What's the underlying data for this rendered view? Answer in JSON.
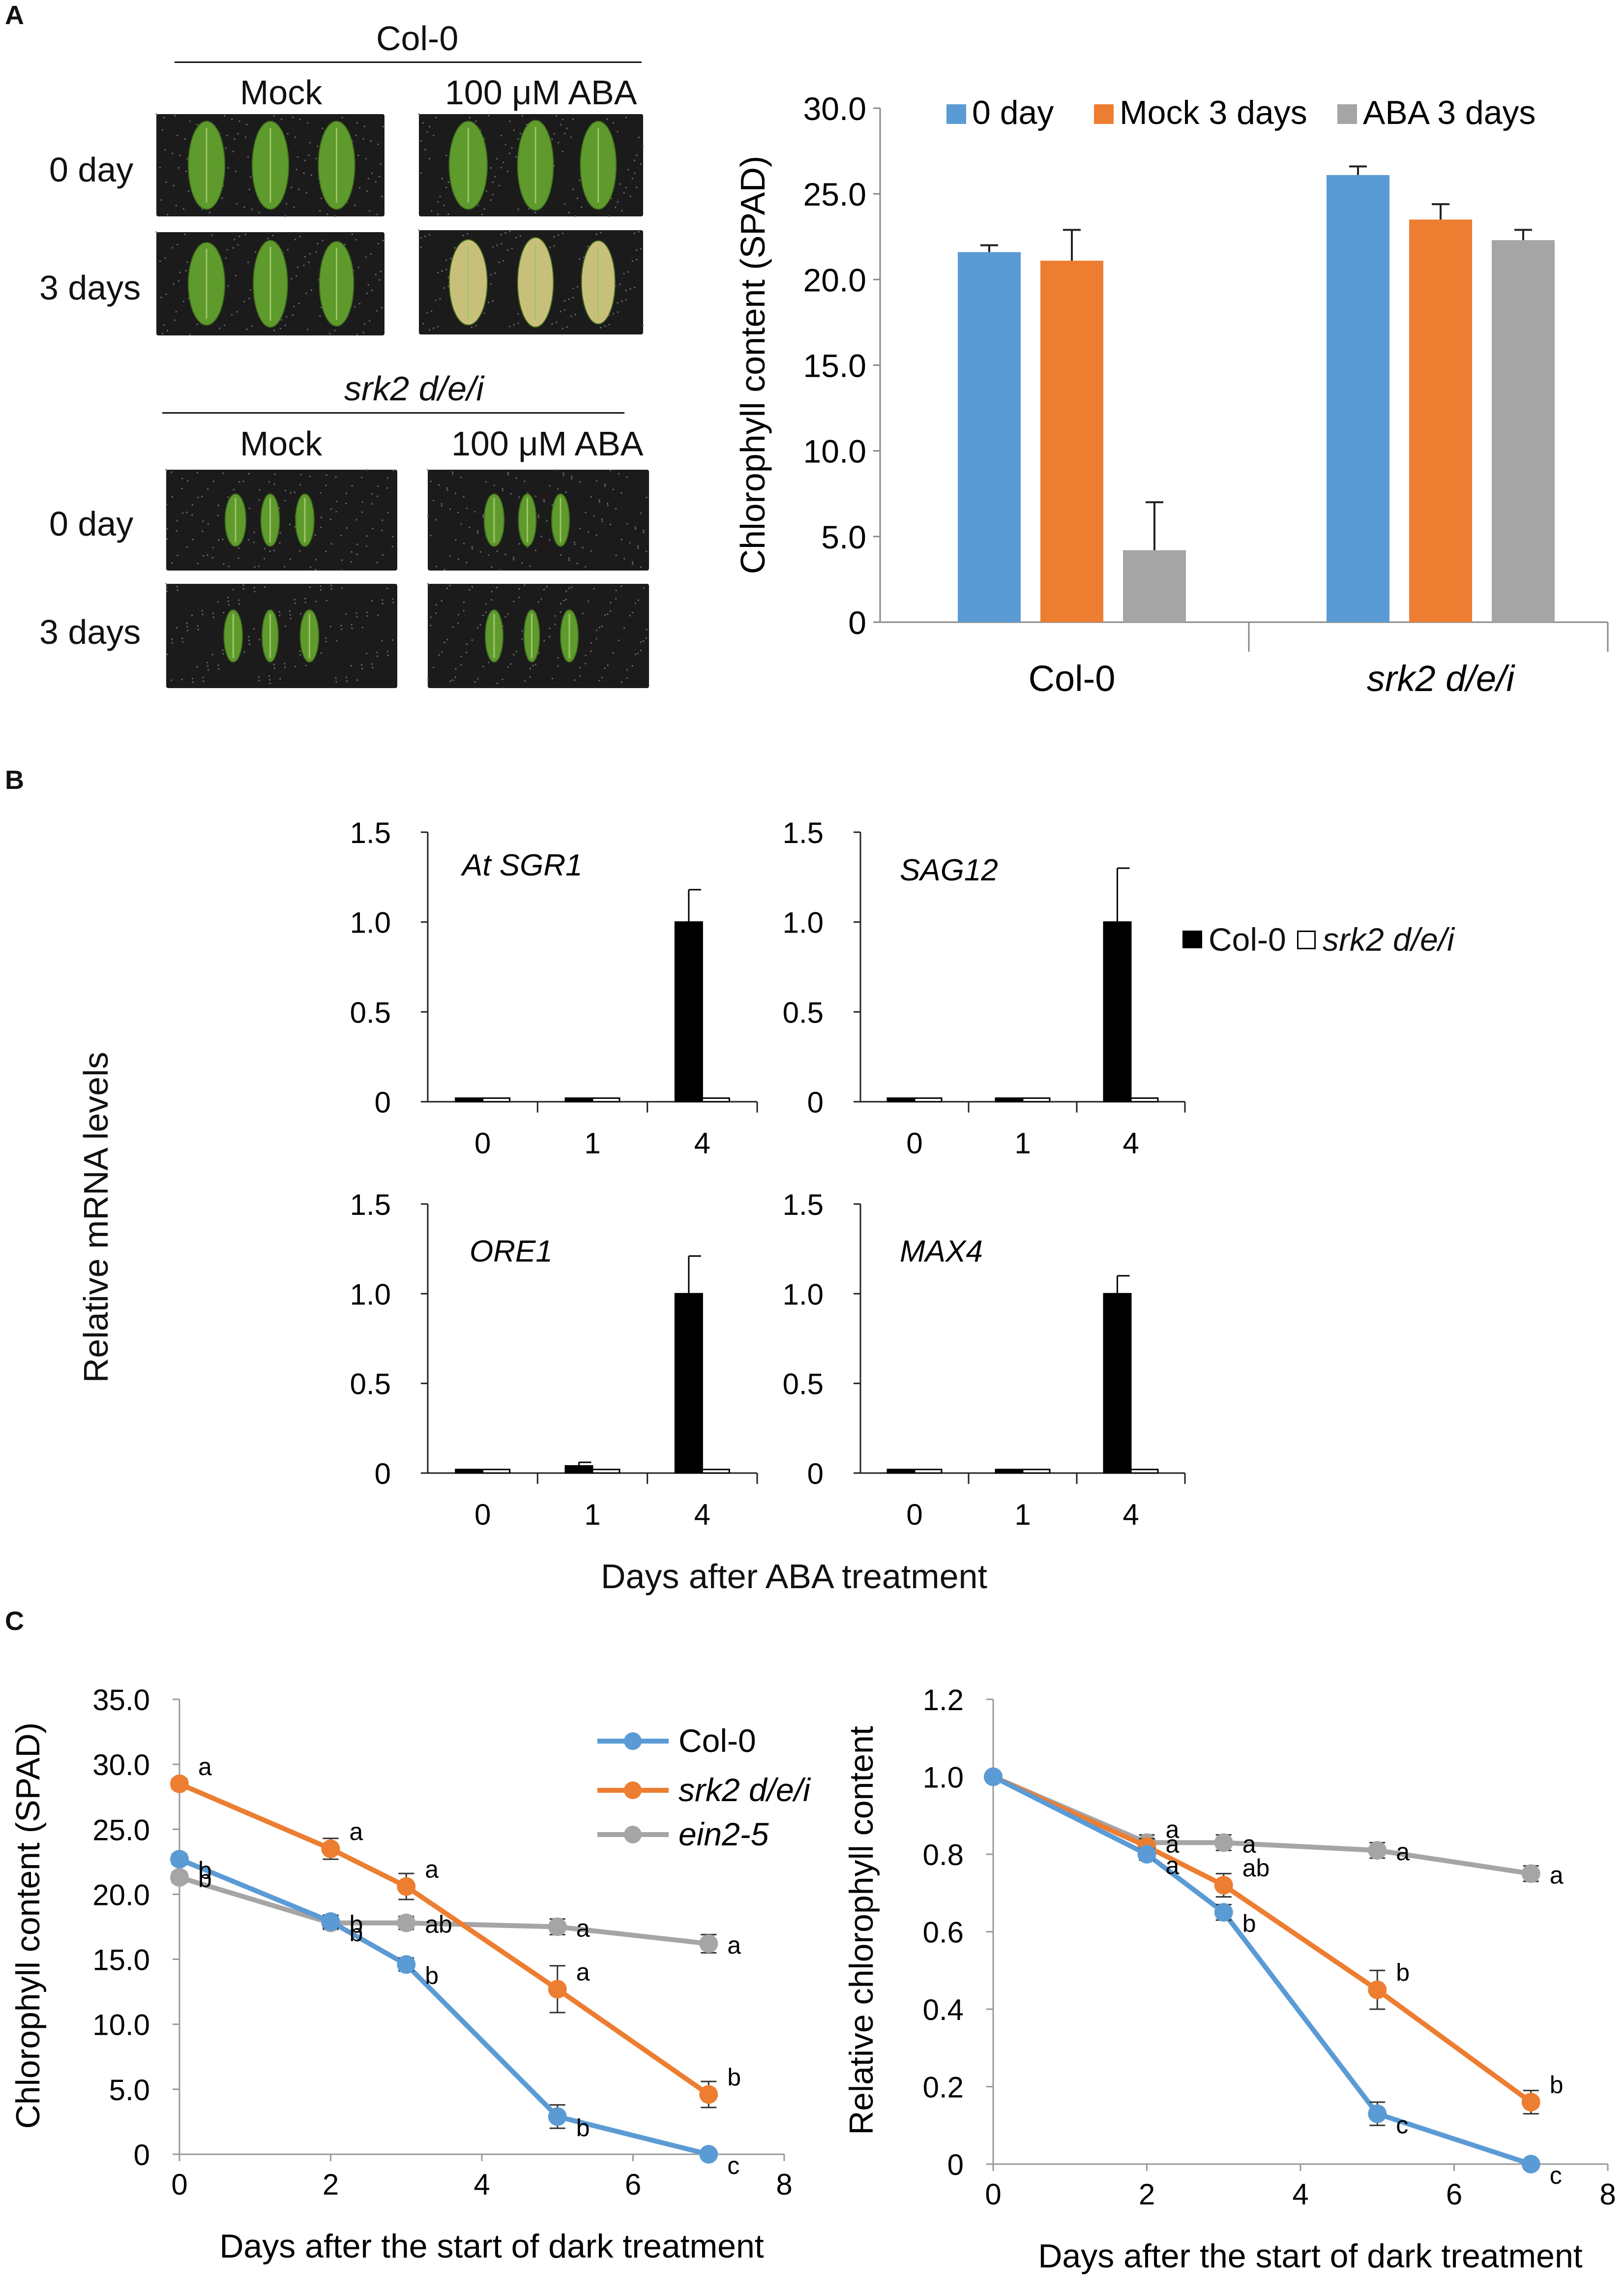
{
  "panels": {
    "a": "A",
    "b": "B",
    "c": "C"
  },
  "photos": {
    "col0_header": "Col-0",
    "srk2_header": "srk2 d/e/i",
    "mock_label": "Mock",
    "aba_label": "100 μM ABA",
    "day0_label": "0 day",
    "day3_label": "3 days",
    "leaf_colors": {
      "green": "#5e9a2c",
      "yellow": "#c8c07a",
      "background": "#1b1b1b"
    }
  },
  "chart_data": [
    {
      "id": "A-bar",
      "type": "bar",
      "ylabel": "Chlorophyll content  (SPAD)",
      "ylim": [
        0,
        30
      ],
      "yticks": [
        "0",
        "5.0",
        "10.0",
        "15.0",
        "20.0",
        "25.0",
        "30.0"
      ],
      "categories": [
        "Col-0",
        "srk2 d/e/i"
      ],
      "legend": "top",
      "series": [
        {
          "name": "0 day",
          "color": "#5b9bd5",
          "values": [
            21.6,
            26.1
          ],
          "errors": [
            0.4,
            0.5
          ]
        },
        {
          "name": "Mock 3 days",
          "color": "#ed7d31",
          "values": [
            21.1,
            23.5
          ],
          "errors": [
            1.8,
            0.9
          ]
        },
        {
          "name": "ABA 3 days",
          "color": "#a5a5a5",
          "values": [
            4.2,
            22.3
          ],
          "errors": [
            2.8,
            0.6
          ]
        }
      ]
    },
    {
      "id": "B-SGR1",
      "type": "bar",
      "gene": "At SGR1",
      "ylim": [
        0,
        1.5
      ],
      "yticks": [
        "0",
        "0.5",
        "1.0",
        "1.5"
      ],
      "categories": [
        "0",
        "1",
        "4"
      ],
      "series": [
        {
          "name": "Col-0",
          "values": [
            0.02,
            0.02,
            1.0
          ],
          "errors": [
            0,
            0,
            0.18
          ]
        },
        {
          "name": "srk2 d/e/i",
          "values": [
            0.02,
            0.02,
            0.02
          ],
          "errors": [
            0,
            0,
            0
          ]
        }
      ]
    },
    {
      "id": "B-SAG12",
      "type": "bar",
      "gene": "SAG12",
      "ylim": [
        0,
        1.5
      ],
      "yticks": [
        "0",
        "0.5",
        "1.0",
        "1.5"
      ],
      "categories": [
        "0",
        "1",
        "4"
      ],
      "series": [
        {
          "name": "Col-0",
          "values": [
            0.02,
            0.02,
            1.0
          ],
          "errors": [
            0,
            0,
            0.3
          ]
        },
        {
          "name": "srk2 d/e/i",
          "values": [
            0.02,
            0.02,
            0.02
          ],
          "errors": [
            0,
            0,
            0
          ]
        }
      ]
    },
    {
      "id": "B-ORE1",
      "type": "bar",
      "gene": "ORE1",
      "ylim": [
        0,
        1.5
      ],
      "yticks": [
        "0",
        "0.5",
        "1.0",
        "1.5"
      ],
      "categories": [
        "0",
        "1",
        "4"
      ],
      "series": [
        {
          "name": "Col-0",
          "values": [
            0.02,
            0.04,
            1.0
          ],
          "errors": [
            0,
            0.02,
            0.21
          ]
        },
        {
          "name": "srk2 d/e/i",
          "values": [
            0.02,
            0.02,
            0.02
          ],
          "errors": [
            0,
            0,
            0
          ]
        }
      ]
    },
    {
      "id": "B-MAX4",
      "type": "bar",
      "gene": "MAX4",
      "ylim": [
        0,
        1.5
      ],
      "yticks": [
        "0",
        "0.5",
        "1.0",
        "1.5"
      ],
      "categories": [
        "0",
        "1",
        "4"
      ],
      "series": [
        {
          "name": "Col-0",
          "values": [
            0.02,
            0.02,
            1.0
          ],
          "errors": [
            0,
            0,
            0.1
          ]
        },
        {
          "name": "srk2 d/e/i",
          "values": [
            0.02,
            0.02,
            0.02
          ],
          "errors": [
            0,
            0,
            0
          ]
        }
      ]
    },
    {
      "id": "C-left",
      "type": "line",
      "ylabel": "Chlorophyll content  (SPAD)",
      "xlabel": "Days after the start of dark treatment",
      "xlim": [
        0,
        8
      ],
      "ylim": [
        0,
        35
      ],
      "xticks": [
        "0",
        "2",
        "4",
        "6",
        "8"
      ],
      "yticks": [
        "0",
        "5.0",
        "10.0",
        "15.0",
        "20.0",
        "25.0",
        "30.0",
        "35.0"
      ],
      "legend": "top-right",
      "series": [
        {
          "name": "Col-0",
          "color": "#5b9bd5",
          "x": [
            0,
            2,
            3,
            5,
            7
          ],
          "y": [
            22.7,
            17.9,
            14.6,
            2.9,
            0
          ],
          "errors": [
            0.4,
            0.5,
            0.5,
            0.9,
            0.3
          ],
          "letters": [
            "b",
            "b",
            "b",
            "b",
            "c"
          ]
        },
        {
          "name": "srk2 d/e/i",
          "color": "#ed7d31",
          "x": [
            0,
            2,
            3,
            5,
            7
          ],
          "y": [
            28.5,
            23.5,
            20.6,
            12.7,
            4.6
          ],
          "errors": [
            0.4,
            0.8,
            1.0,
            1.8,
            1.0
          ],
          "letters": [
            "a",
            "a",
            "a",
            "a",
            "b"
          ]
        },
        {
          "name": "ein2-5",
          "color": "#a5a5a5",
          "x": [
            0,
            2,
            3,
            5,
            7
          ],
          "y": [
            21.3,
            17.8,
            17.8,
            17.5,
            16.2
          ],
          "errors": [
            0.4,
            0.5,
            0.5,
            0.6,
            0.7
          ],
          "letters": [
            "b",
            "b",
            "ab",
            "a",
            "a"
          ]
        }
      ]
    },
    {
      "id": "C-right",
      "type": "line",
      "ylabel": "Relative chlorophyll content",
      "xlabel": "Days after the start of dark treatment",
      "xlim": [
        0,
        8
      ],
      "ylim": [
        0,
        1.2
      ],
      "xticks": [
        "0",
        "2",
        "4",
        "6",
        "8"
      ],
      "yticks": [
        "0",
        "0.2",
        "0.4",
        "0.6",
        "0.8",
        "1.0",
        "1.2"
      ],
      "series": [
        {
          "name": "Col-0",
          "color": "#5b9bd5",
          "x": [
            0,
            2,
            3,
            5,
            7
          ],
          "y": [
            1.0,
            0.8,
            0.65,
            0.13,
            0.0
          ],
          "errors": [
            0,
            0.015,
            0.02,
            0.03,
            0.01
          ],
          "letters": [
            "",
            "a",
            "b",
            "c",
            "c"
          ]
        },
        {
          "name": "srk2 d/e/i",
          "color": "#ed7d31",
          "x": [
            0,
            2,
            3,
            5,
            7
          ],
          "y": [
            1.0,
            0.82,
            0.72,
            0.45,
            0.16
          ],
          "errors": [
            0,
            0.02,
            0.03,
            0.05,
            0.03
          ],
          "letters": [
            "",
            "a",
            "ab",
            "b",
            "b"
          ]
        },
        {
          "name": "ein2-5",
          "color": "#a5a5a5",
          "x": [
            0,
            2,
            3,
            5,
            7
          ],
          "y": [
            1.0,
            0.83,
            0.83,
            0.81,
            0.75
          ],
          "errors": [
            0,
            0.02,
            0.02,
            0.02,
            0.02
          ],
          "letters": [
            "",
            "a",
            "a",
            "a",
            "a"
          ]
        }
      ]
    }
  ],
  "panel_b": {
    "ylabel": "Relative mRNA levels",
    "xlabel": "Days after ABA treatment",
    "legend": {
      "col0": "Col-0",
      "srk2": "srk2 d/e/i"
    }
  }
}
